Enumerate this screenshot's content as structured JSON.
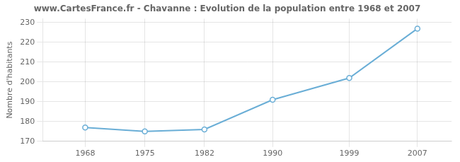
{
  "chart_data": {
    "type": "line",
    "title": "www.CartesFrance.fr - Chavanne : Evolution de la population entre 1968 et 2007",
    "ylabel": "Nombre d'habitants",
    "x": [
      1968,
      1975,
      1982,
      1990,
      1999,
      2007
    ],
    "values": [
      177,
      175,
      176,
      191,
      202,
      227
    ],
    "color": "#6aaed6",
    "marker": "circle",
    "xlim": [
      1963,
      2011
    ],
    "xticks": [
      1968,
      1975,
      1982,
      1990,
      1999,
      2007
    ],
    "ylim": [
      170,
      232
    ],
    "yticks": [
      170,
      180,
      190,
      200,
      210,
      220,
      230
    ],
    "grid": true
  }
}
